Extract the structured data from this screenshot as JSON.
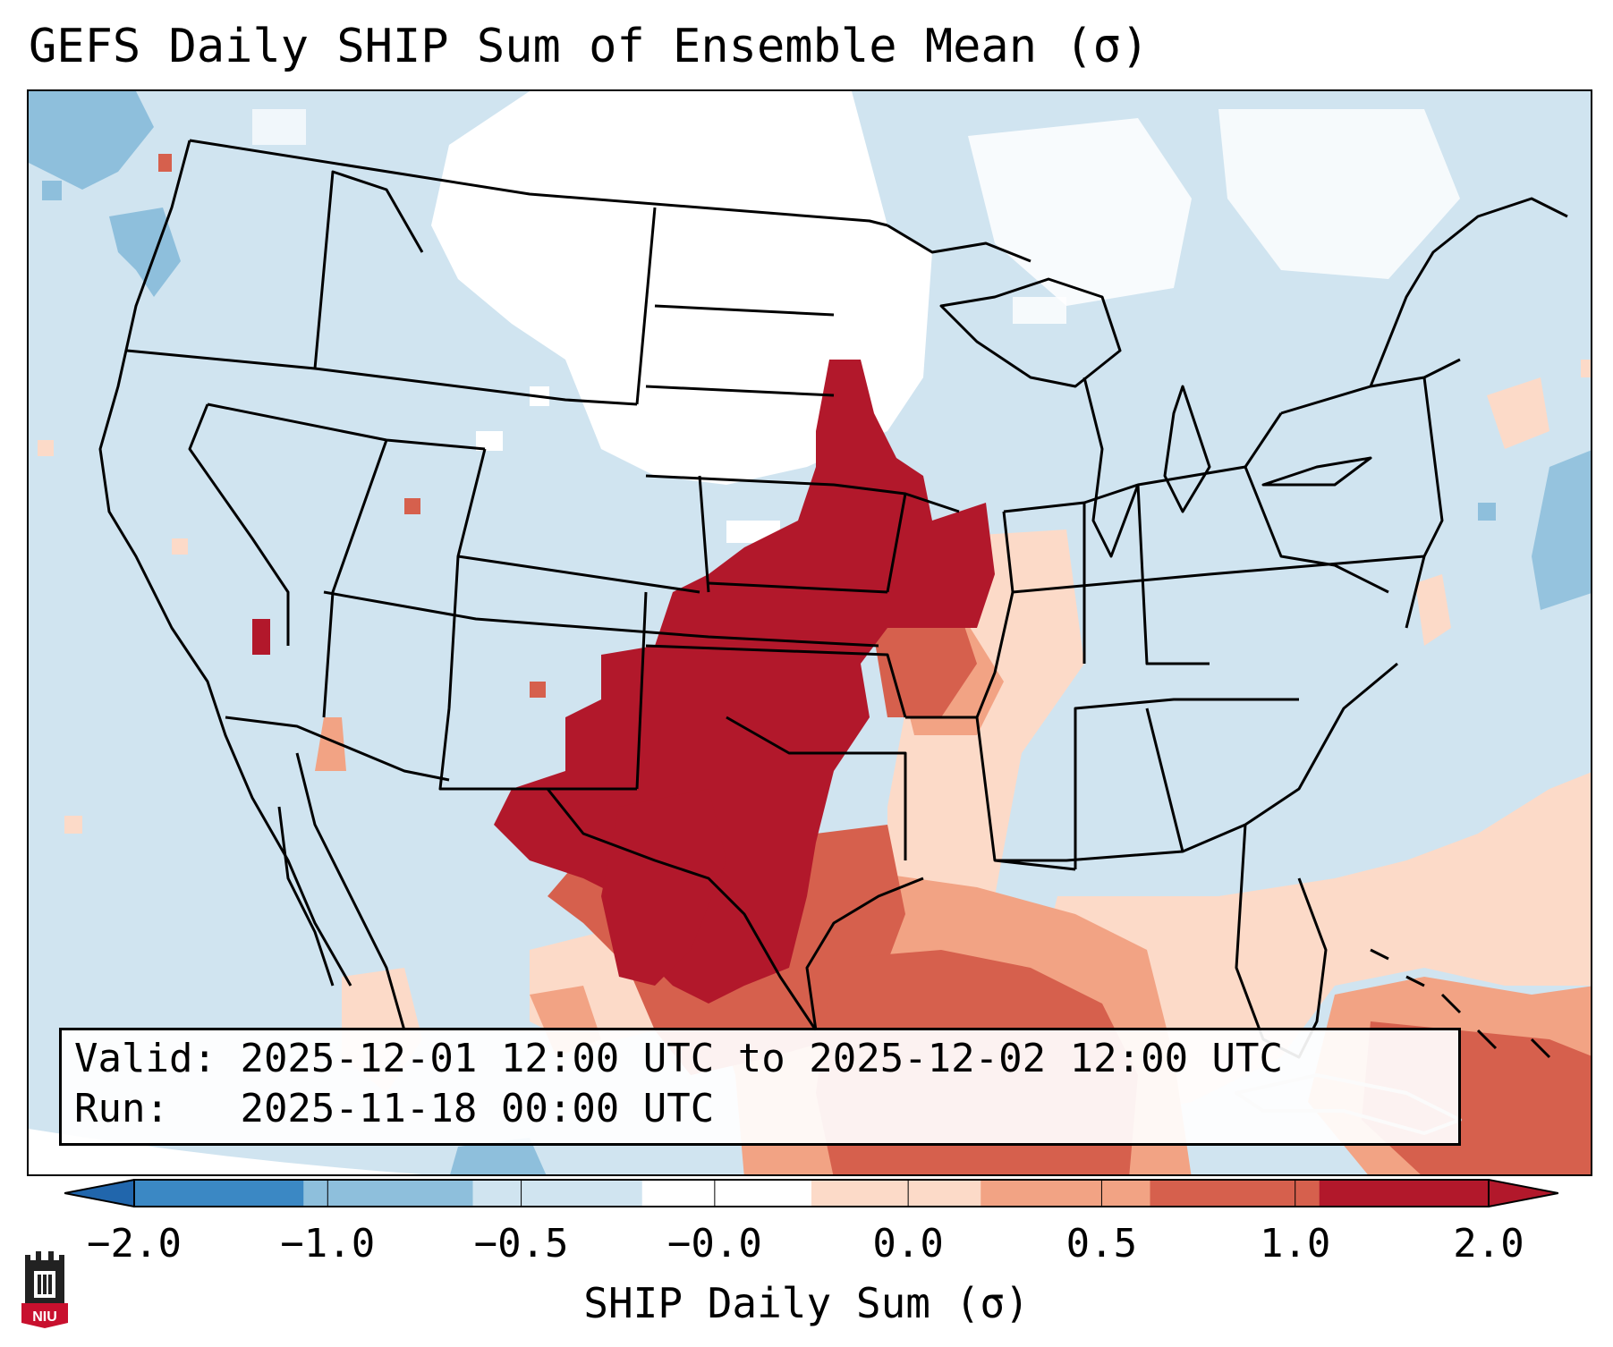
{
  "title": "GEFS Daily SHIP Sum of Ensemble Mean (σ)",
  "info": {
    "valid_label": "Valid:",
    "valid_value": "2025-12-01 12:00 UTC to 2025-12-02 12:00 UTC",
    "run_label": "Run:",
    "run_value": "2025-11-18 00:00 UTC"
  },
  "colorbar": {
    "label": "SHIP Daily Sum (σ)",
    "ticks": [
      "−2.0",
      "−1.0",
      "−0.5",
      "−0.0",
      "0.0",
      "0.5",
      "1.0",
      "2.0"
    ],
    "colors": [
      "#3b88c4",
      "#8ebfdc",
      "#d0e4f0",
      "#ffffff",
      "#fcdac8",
      "#f2a384",
      "#d6604d",
      "#b2182b"
    ],
    "extend": "both"
  },
  "colors": {
    "ocean_land_default": "#d0e4f0",
    "neutral": "#ffffff",
    "light_positive": "#fcdac8",
    "moderate_positive": "#f2a384",
    "strong_positive": "#d6604d",
    "very_strong_positive": "#b2182b",
    "light_negative": "#8ebfdc"
  },
  "logo": {
    "text": "NIU",
    "icon": "niu-castle-icon"
  }
}
